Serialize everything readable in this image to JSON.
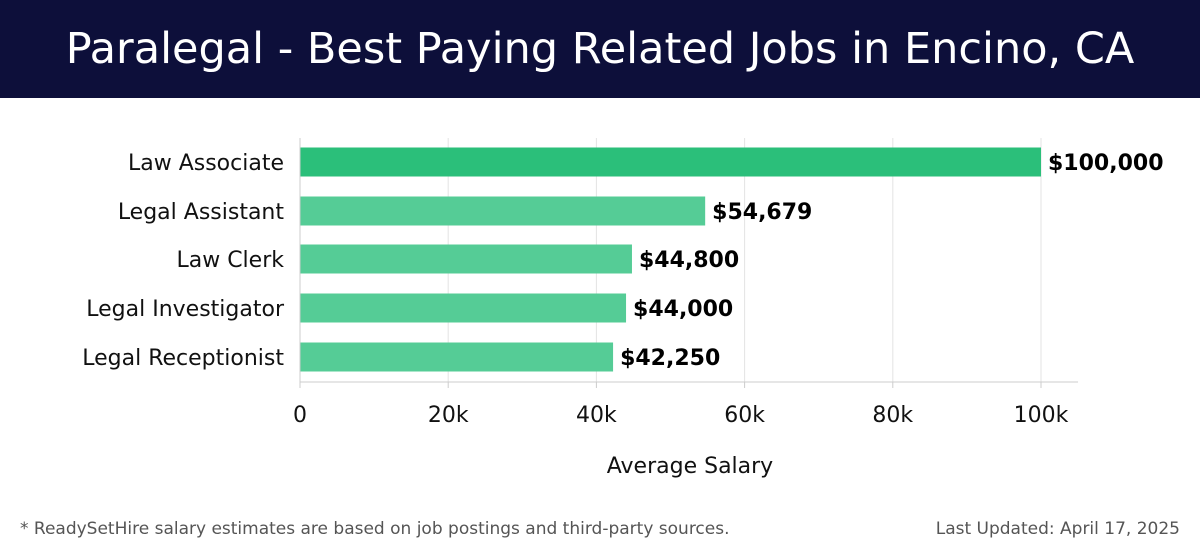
{
  "header": {
    "title": "Paralegal - Best Paying Related Jobs in Encino, CA"
  },
  "chart_data": {
    "type": "bar",
    "orientation": "horizontal",
    "categories": [
      "Law Associate",
      "Legal Assistant",
      "Law Clerk",
      "Legal Investigator",
      "Legal Receptionist"
    ],
    "values": [
      100000,
      54679,
      44800,
      44000,
      42250
    ],
    "data_labels": [
      "$100,000",
      "$54,679",
      "$44,800",
      "$44,000",
      "$42,250"
    ],
    "xlabel": "Average Salary",
    "ylabel": "",
    "xlim": [
      0,
      105000
    ],
    "xticks": [
      0,
      20000,
      40000,
      60000,
      80000,
      100000
    ],
    "xtick_labels": [
      "0",
      "20k",
      "40k",
      "60k",
      "80k",
      "100k"
    ],
    "grid": true,
    "colors": {
      "highlight": "#2bbf7a",
      "bar": "#55cc96"
    }
  },
  "footer": {
    "note": "* ReadySetHire salary estimates are based on job postings and third-party sources.",
    "updated": "Last Updated: April 17, 2025"
  }
}
